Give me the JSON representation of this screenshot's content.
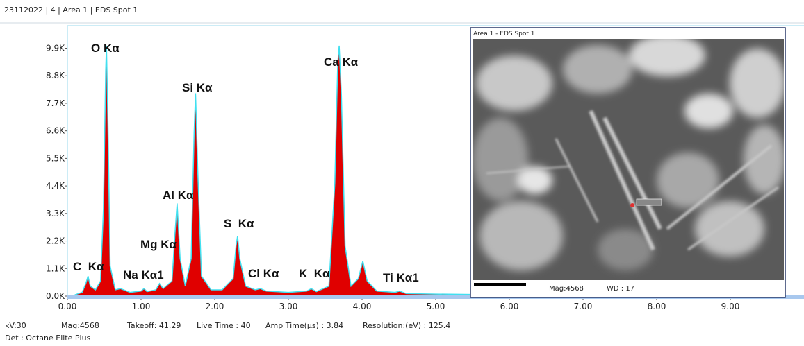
{
  "header": "23112022 | 4 | Area 1 | EDS Spot 1",
  "chart_data": {
    "type": "area",
    "x": [
      0.1,
      0.2,
      0.25,
      0.28,
      0.31,
      0.38,
      0.45,
      0.49,
      0.52,
      0.53,
      0.55,
      0.58,
      0.65,
      0.72,
      0.85,
      1.0,
      1.04,
      1.08,
      1.2,
      1.25,
      1.3,
      1.42,
      1.46,
      1.49,
      1.53,
      1.6,
      1.68,
      1.72,
      1.74,
      1.77,
      1.82,
      1.95,
      2.1,
      2.25,
      2.29,
      2.31,
      2.34,
      2.42,
      2.55,
      2.62,
      2.7,
      3.0,
      3.25,
      3.31,
      3.38,
      3.55,
      3.63,
      3.67,
      3.69,
      3.72,
      3.77,
      3.85,
      3.95,
      4.01,
      4.07,
      4.2,
      4.45,
      4.51,
      4.6,
      5.0,
      6.0,
      7.0,
      8.0,
      9.0,
      10.0
    ],
    "series": [
      {
        "color": "#e00000",
        "line_color": "#40e0f0",
        "values": [
          50,
          150,
          500,
          800,
          400,
          250,
          600,
          3500,
          9000,
          10000,
          7000,
          1200,
          250,
          300,
          150,
          200,
          300,
          180,
          250,
          500,
          300,
          600,
          2500,
          3700,
          1500,
          400,
          1500,
          6500,
          8100,
          5000,
          800,
          250,
          250,
          700,
          2000,
          2400,
          1500,
          400,
          250,
          300,
          200,
          150,
          200,
          300,
          180,
          400,
          4500,
          9300,
          10000,
          8000,
          2000,
          400,
          700,
          1400,
          600,
          200,
          150,
          200,
          100,
          80,
          50,
          40,
          30,
          20,
          20
        ]
      }
    ],
    "xlim": [
      0,
      10
    ],
    "ylim": [
      0,
      10800
    ],
    "xticks": [
      {
        "value": 0,
        "label": "0.00"
      },
      {
        "value": 1,
        "label": "1.00"
      },
      {
        "value": 2,
        "label": "2.00"
      },
      {
        "value": 3,
        "label": "3.00"
      },
      {
        "value": 4,
        "label": "4.00"
      },
      {
        "value": 5,
        "label": "5.00"
      },
      {
        "value": 6,
        "label": "6.00"
      },
      {
        "value": 7,
        "label": "7.00"
      },
      {
        "value": 8,
        "label": "8.00"
      },
      {
        "value": 9,
        "label": "9.00"
      }
    ],
    "yticks": [
      {
        "value": 0,
        "label": "0.0K"
      },
      {
        "value": 1100,
        "label": "1.1K"
      },
      {
        "value": 2200,
        "label": "2.2K"
      },
      {
        "value": 3300,
        "label": "3.3K"
      },
      {
        "value": 4400,
        "label": "4.4K"
      },
      {
        "value": 5500,
        "label": "5.5K"
      },
      {
        "value": 6600,
        "label": "6.6K"
      },
      {
        "value": 7700,
        "label": "7.7K"
      },
      {
        "value": 8800,
        "label": "8.8K"
      },
      {
        "value": 9900,
        "label": "9.9K"
      }
    ],
    "annotations": [
      "O Kα",
      "Si Kα",
      "Ca Kα",
      "Al Kα",
      "Mg Kα",
      "S  Kα",
      "C  Kα",
      "Na Kα1",
      "Cl Kα",
      "K  Kα",
      "Ti Kα1"
    ]
  },
  "image_panel": {
    "title": "Area 1 - EDS Spot 1",
    "mag": "Mag:4568",
    "wd": "WD : 17"
  },
  "footer": {
    "line1": [
      "kV:30",
      "Mag:4568",
      "Takeoff: 41.29",
      "Live Time : 40",
      "Amp Time(µs) : 3.84",
      "Resolution:(eV) : 125.4"
    ],
    "line2": "Det : Octane Elite Plus"
  }
}
